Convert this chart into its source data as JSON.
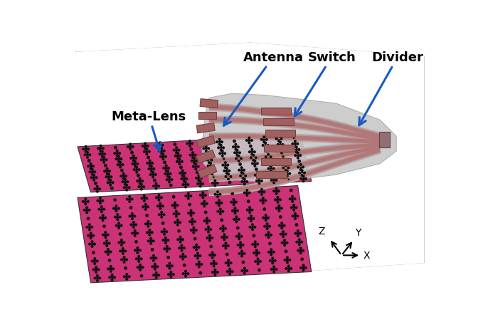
{
  "background_color": "#ffffff",
  "box_color": "#aaaaaa",
  "meta_lens_color": "#cc3377",
  "symbol_color": "#1a1a1a",
  "gray_substrate": "#c0c0c0",
  "copper_color": "#b87878",
  "labels": {
    "meta_lens": "Meta-Lens",
    "antenna": "Antenna",
    "switch": "Switch",
    "divider": "Divider"
  },
  "label_fontsize": 13,
  "arrow_color": "#1a5abf"
}
